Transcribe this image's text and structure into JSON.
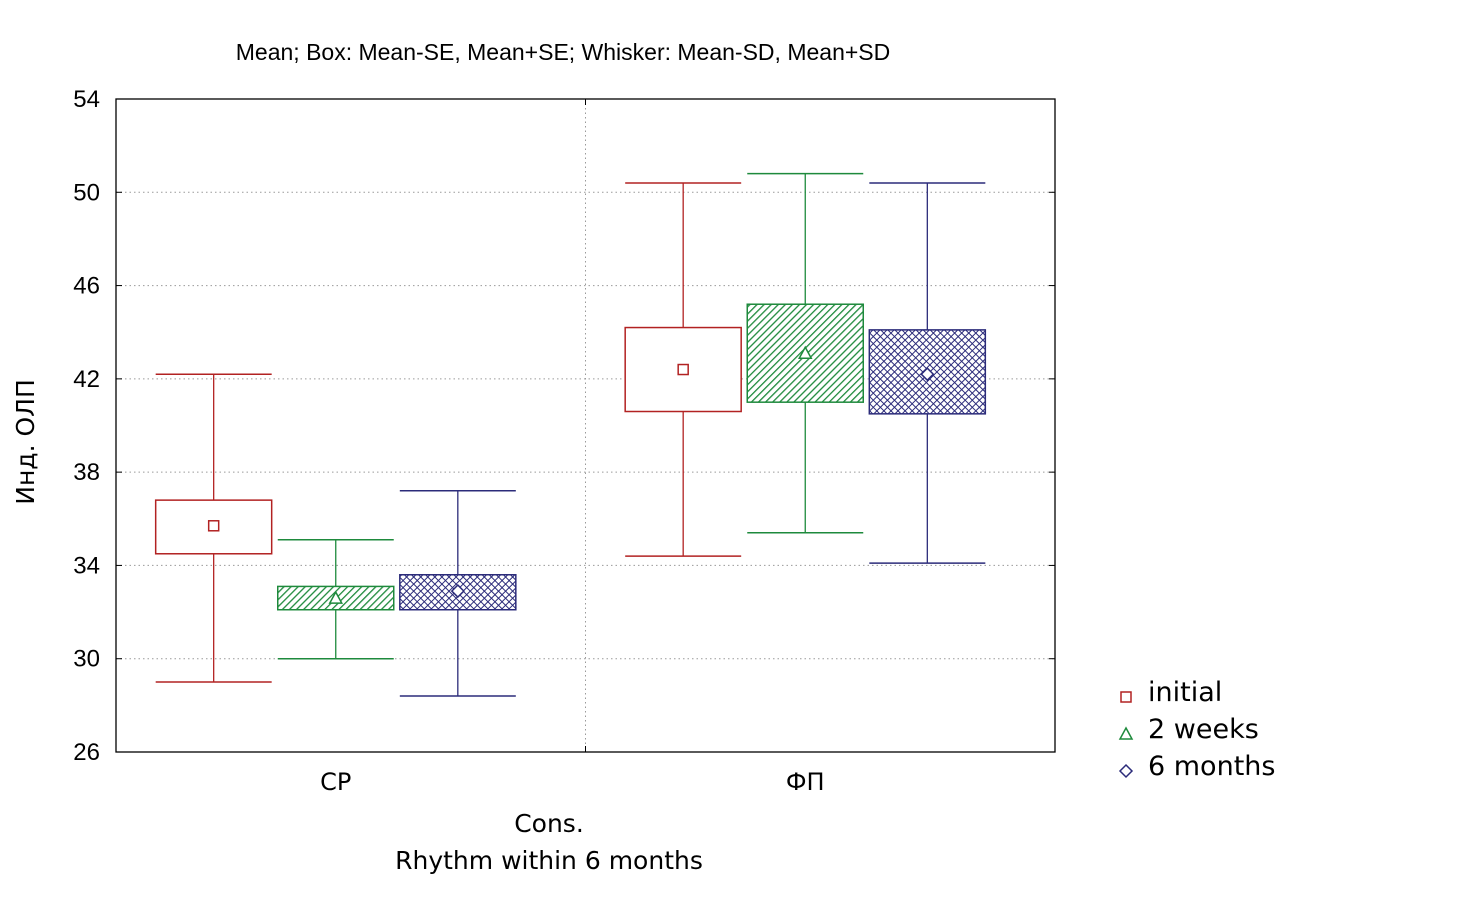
{
  "chart_data": {
    "type": "box",
    "title": "Mean; Box: Mean-SE, Mean+SE; Whisker: Mean-SD, Mean+SD",
    "xlabel_line1": "Cons.",
    "xlabel_line2": "Rhythm within 6 months",
    "ylabel": "Инд. ОЛП",
    "ylim": [
      26,
      54
    ],
    "yticks": [
      "26",
      "30",
      "34",
      "38",
      "42",
      "46",
      "50",
      "54"
    ],
    "categories": [
      "СР",
      "ФП"
    ],
    "grid": true,
    "legend_position": "right",
    "series": [
      {
        "name": "initial",
        "color": "#b22222",
        "marker": "square",
        "fill": "none",
        "values": [
          {
            "mean": 35.7,
            "se_low": 34.5,
            "se_high": 36.8,
            "sd_low": 29.0,
            "sd_high": 42.2
          },
          {
            "mean": 42.4,
            "se_low": 40.6,
            "se_high": 44.2,
            "sd_low": 34.4,
            "sd_high": 50.4
          }
        ]
      },
      {
        "name": "2 weeks",
        "color": "#1e8a3c",
        "marker": "triangle",
        "fill": "hatch",
        "values": [
          {
            "mean": 32.6,
            "se_low": 32.1,
            "se_high": 33.1,
            "sd_low": 30.0,
            "sd_high": 35.1
          },
          {
            "mean": 43.1,
            "se_low": 41.0,
            "se_high": 45.2,
            "sd_low": 35.4,
            "sd_high": 50.8
          }
        ]
      },
      {
        "name": "6 months",
        "color": "#2b2b7a",
        "marker": "diamond",
        "fill": "crosshatch",
        "values": [
          {
            "mean": 32.9,
            "se_low": 32.1,
            "se_high": 33.6,
            "sd_low": 28.4,
            "sd_high": 37.2
          },
          {
            "mean": 42.2,
            "se_low": 40.5,
            "se_high": 44.1,
            "sd_low": 34.1,
            "sd_high": 50.4
          }
        ]
      }
    ]
  }
}
